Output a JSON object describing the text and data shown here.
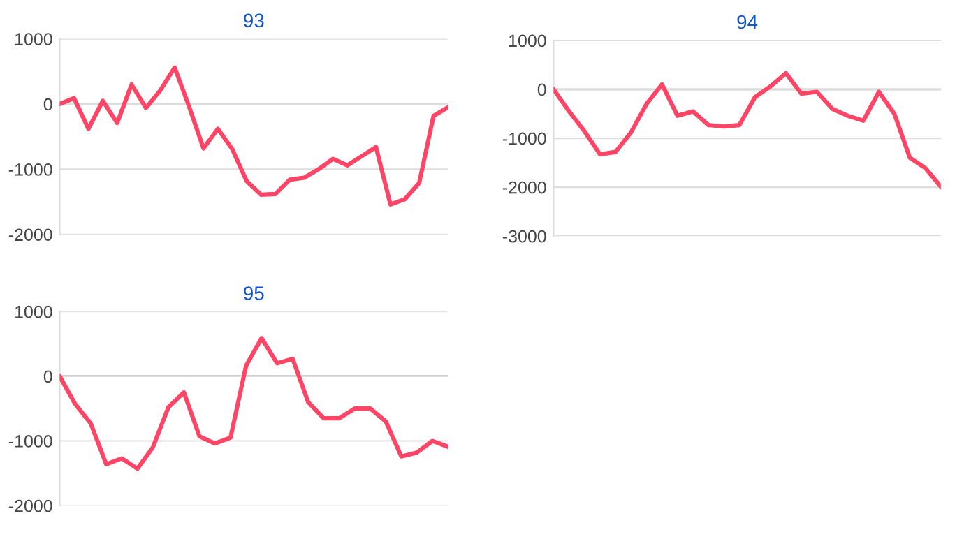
{
  "chart_data": [
    {
      "type": "line",
      "title": "93",
      "categories": [
        null,
        null,
        null,
        null,
        null,
        null,
        null,
        null,
        null,
        null,
        null,
        null,
        null,
        null,
        null,
        null,
        null,
        null,
        null,
        null,
        null,
        null,
        null,
        null,
        null,
        null,
        null,
        null
      ],
      "series": [
        {
          "color": "#ff4566",
          "values": [
            0,
            90,
            -380,
            50,
            -290,
            300,
            -60,
            210,
            560,
            -40,
            -680,
            -380,
            -690,
            -1180,
            -1390,
            -1380,
            -1160,
            -1130,
            -1000,
            -840,
            -940,
            -800,
            -660,
            -1540,
            -1460,
            -1210,
            -180,
            -50
          ]
        }
      ],
      "ylim": [
        -2000,
        1000
      ],
      "yticks": [
        -2000,
        -1000,
        0,
        1000
      ],
      "grid": "y",
      "ref_lines": [
        {
          "axis": "y",
          "value": 0,
          "color": "#999999"
        }
      ],
      "tick_labels": "y"
    },
    {
      "type": "line",
      "title": "94",
      "categories": [
        null,
        null,
        null,
        null,
        null,
        null,
        null,
        null,
        null,
        null,
        null,
        null,
        null,
        null,
        null,
        null,
        null,
        null,
        null,
        null,
        null,
        null,
        null,
        null,
        null,
        null
      ],
      "series": [
        {
          "color": "#ff4566",
          "values": [
            0,
            -450,
            -860,
            -1330,
            -1280,
            -880,
            -300,
            100,
            -540,
            -450,
            -730,
            -760,
            -730,
            -160,
            60,
            330,
            -90,
            -50,
            -400,
            -540,
            -640,
            -50,
            -500,
            -1400,
            -1610,
            -1990
          ]
        }
      ],
      "ylim": [
        -3000,
        1000
      ],
      "yticks": [
        -3000,
        -2000,
        -1000,
        0,
        1000
      ],
      "grid": "y",
      "ref_lines": [
        {
          "axis": "y",
          "value": 0,
          "color": "#999999"
        }
      ],
      "tick_labels": "y"
    },
    {
      "type": "line",
      "title": "95",
      "categories": [
        null,
        null,
        null,
        null,
        null,
        null,
        null,
        null,
        null,
        null,
        null,
        null,
        null,
        null,
        null,
        null,
        null,
        null,
        null,
        null,
        null,
        null,
        null,
        null,
        null,
        null
      ],
      "series": [
        {
          "color": "#ff4566",
          "values": [
            0,
            -430,
            -730,
            -1360,
            -1270,
            -1430,
            -1100,
            -480,
            -250,
            -930,
            -1040,
            -950,
            160,
            590,
            200,
            270,
            -400,
            -650,
            -650,
            -500,
            -500,
            -700,
            -1240,
            -1180,
            -1000,
            -1090
          ]
        }
      ],
      "ylim": [
        -2000,
        1000
      ],
      "yticks": [
        -2000,
        -1000,
        0,
        1000
      ],
      "grid": "y",
      "ref_lines": [
        {
          "axis": "y",
          "value": 0,
          "color": "#999999"
        }
      ],
      "tick_labels": "y"
    }
  ]
}
